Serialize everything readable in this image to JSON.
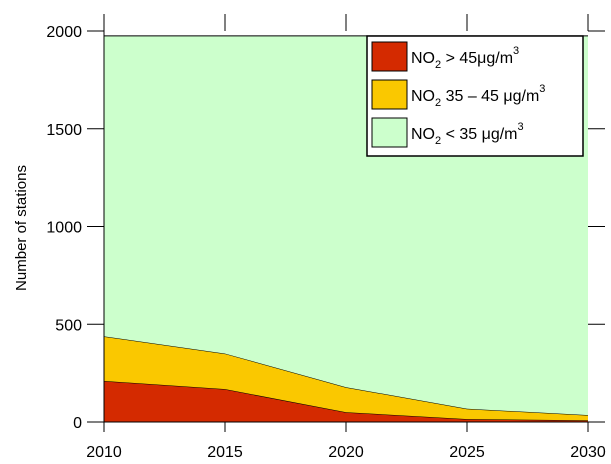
{
  "chart_data": {
    "type": "area",
    "stacked": true,
    "x": [
      2010,
      2015,
      2020,
      2025,
      2030
    ],
    "xlim": [
      2010,
      2030
    ],
    "ylim": [
      0,
      2000
    ],
    "xticks": [
      "2010",
      "2015",
      "2020",
      "2025",
      "2030"
    ],
    "yticks": [
      "0",
      "500",
      "1000",
      "1500",
      "2000"
    ],
    "ylabel": "Number of stations",
    "xlabel": "",
    "title": "",
    "grid": false,
    "legend_position": "top-right",
    "series": [
      {
        "key": "high",
        "legend_parts": [
          "NO",
          "2",
          " > 45μg/m",
          "3"
        ],
        "color": "#d42a00",
        "values": [
          210,
          168,
          50,
          15,
          8
        ]
      },
      {
        "key": "mid",
        "legend_parts": [
          "NO",
          "2",
          " 35 – 45 μg/m",
          "3"
        ],
        "color": "#fac800",
        "values": [
          228,
          182,
          128,
          53,
          27
        ]
      },
      {
        "key": "low",
        "legend_parts": [
          "NO",
          "2",
          " < 35 μg/m",
          "3"
        ],
        "color": "#ccffcc",
        "values": [
          1537,
          1625,
          1797,
          1907,
          1940
        ]
      }
    ]
  }
}
